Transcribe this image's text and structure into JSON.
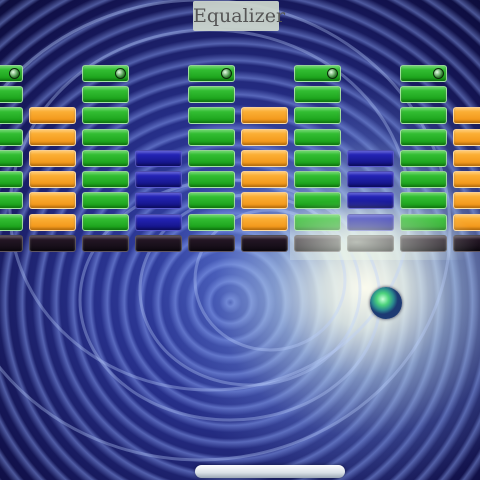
{
  "title": "Equalizer",
  "colors": {
    "green": "#22b022",
    "orange": "#f7a126",
    "blue": "#1b1ba6",
    "base": "#1c121d"
  },
  "columns": [
    {
      "color": "green",
      "level": 8
    },
    {
      "color": "orange",
      "level": 6
    },
    {
      "color": "green",
      "level": 8
    },
    {
      "color": "blue",
      "level": 4
    },
    {
      "color": "green",
      "level": 8
    },
    {
      "color": "orange",
      "level": 6
    },
    {
      "color": "green",
      "level": 8
    },
    {
      "color": "blue",
      "level": 4
    },
    {
      "color": "green",
      "level": 8
    },
    {
      "color": "orange",
      "level": 6
    }
  ],
  "ball": {
    "icon": "ball-icon"
  },
  "paddle": {
    "icon": "paddle-icon"
  }
}
